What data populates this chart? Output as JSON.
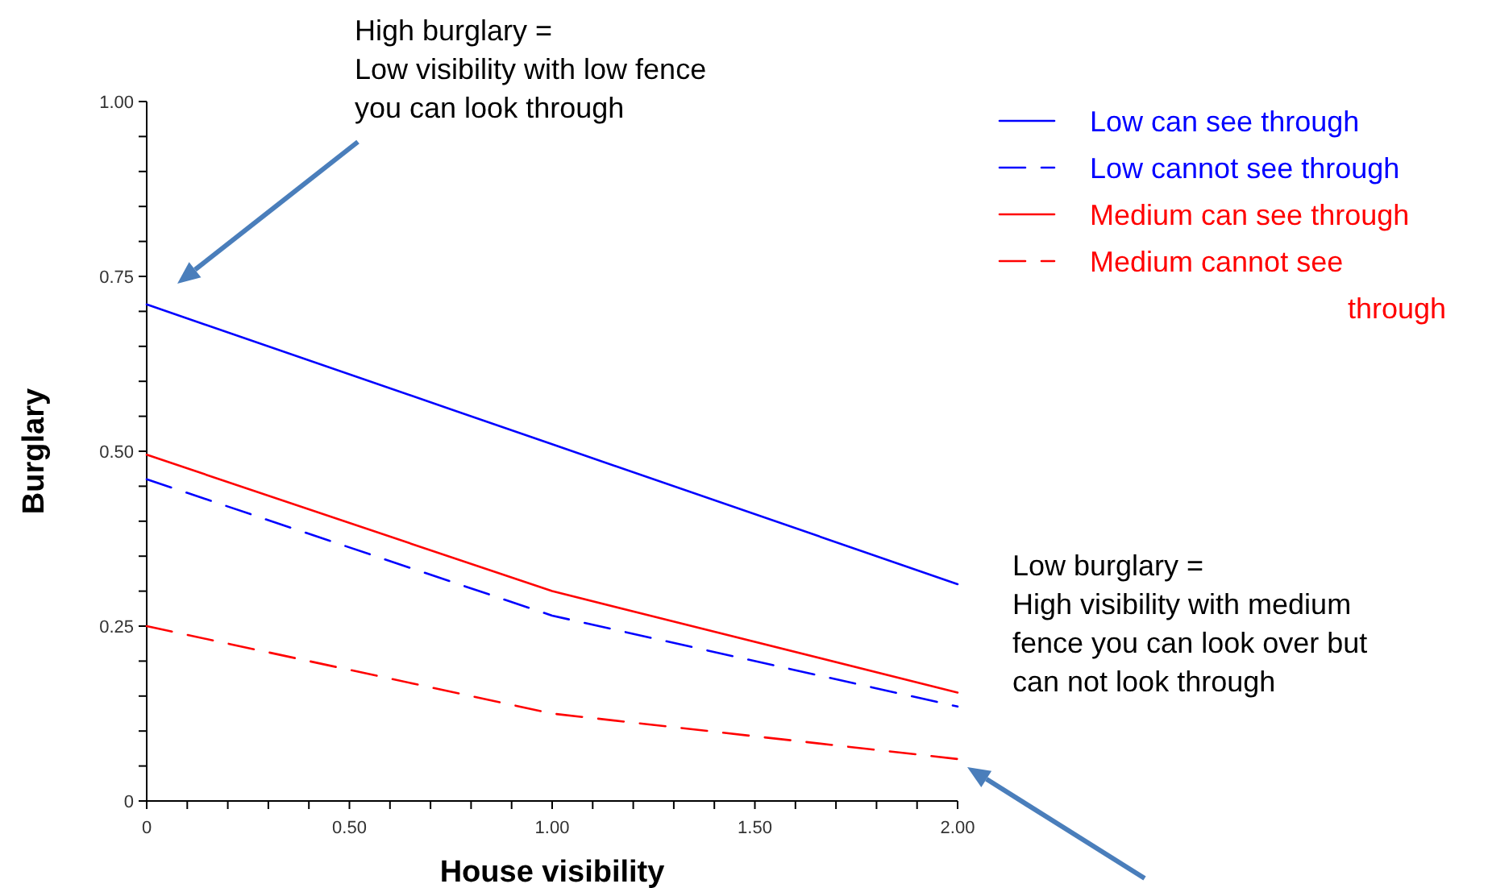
{
  "chart_data": {
    "type": "line",
    "xlabel": "House visibility",
    "ylabel": "Burglary",
    "x": [
      0,
      1,
      2
    ],
    "series": [
      {
        "name": "Low can see through",
        "color": "#0000ff",
        "line_style": "solid",
        "values": [
          0.71,
          0.51,
          0.31
        ]
      },
      {
        "name": "Low cannot see through",
        "color": "#0000ff",
        "line_style": "dashed",
        "values": [
          0.46,
          0.265,
          0.135
        ]
      },
      {
        "name": "Medium can see through",
        "color": "#ff0000",
        "line_style": "solid",
        "values": [
          0.495,
          0.3,
          0.155
        ]
      },
      {
        "name": "Medium cannot see through",
        "color": "#ff0000",
        "line_style": "dashed",
        "values": [
          0.25,
          0.125,
          0.06
        ]
      }
    ],
    "xlim": [
      0,
      2
    ],
    "ylim": [
      0,
      1
    ],
    "xticks": [
      0,
      {
        "value": 0.1,
        "label": null
      },
      {
        "value": 0.2,
        "label": null
      },
      {
        "value": 0.3,
        "label": null
      },
      {
        "value": 0.4,
        "label": null
      },
      {
        "value": 0.5,
        "label": "0.50"
      },
      {
        "value": 0.6,
        "label": null
      },
      {
        "value": 0.7,
        "label": null
      },
      {
        "value": 0.8,
        "label": null
      },
      {
        "value": 0.9,
        "label": null
      },
      {
        "value": 1,
        "label": "1.00"
      },
      {
        "value": 1.1,
        "label": null
      },
      {
        "value": 1.2,
        "label": null
      },
      {
        "value": 1.3,
        "label": null
      },
      {
        "value": 1.4,
        "label": null
      },
      {
        "value": 1.5,
        "label": "1.50"
      },
      {
        "value": 1.6,
        "label": null
      },
      {
        "value": 1.7,
        "label": null
      },
      {
        "value": 1.8,
        "label": null
      },
      {
        "value": 1.9,
        "label": null
      },
      {
        "value": 2,
        "label": "2.00"
      }
    ],
    "yticks": [
      0,
      {
        "value": 0.05,
        "label": null
      },
      {
        "value": 0.1,
        "label": null
      },
      {
        "value": 0.15,
        "label": null
      },
      {
        "value": 0.2,
        "label": null
      },
      0.25,
      {
        "value": 0.3,
        "label": null
      },
      {
        "value": 0.35,
        "label": null
      },
      {
        "value": 0.4,
        "label": null
      },
      {
        "value": 0.45,
        "label": null
      },
      {
        "value": 0.5,
        "label": "0.50"
      },
      {
        "value": 0.55,
        "label": null
      },
      {
        "value": 0.6,
        "label": null
      },
      {
        "value": 0.65,
        "label": null
      },
      {
        "value": 0.7,
        "label": null
      },
      {
        "value": 0.75,
        "label": "0.75"
      },
      {
        "value": 0.8,
        "label": null
      },
      {
        "value": 0.85,
        "label": null
      },
      {
        "value": 0.9,
        "label": null
      },
      {
        "value": 0.95,
        "label": null
      },
      {
        "value": 1,
        "label": "1.00"
      }
    ],
    "grid": false,
    "legend": "top right",
    "marker": "none",
    "annotations": [
      "High burglary =\nLow visibility with low fence\nyou can look through",
      {
        "text": "Low burglary =\nHigh visibility with medium\nfence you can look over but\ncan not look through",
        "x": 2,
        "y": 0.06
      }
    ]
  }
}
